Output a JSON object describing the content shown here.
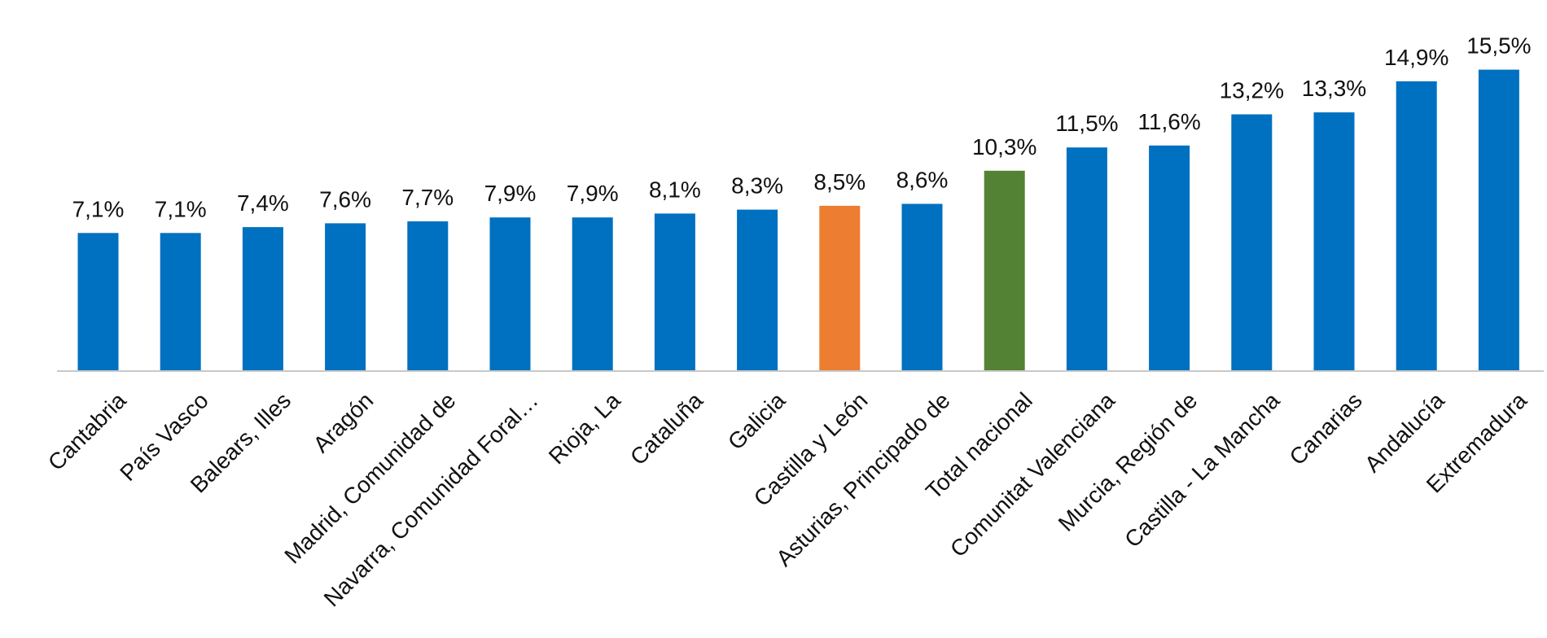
{
  "chart_data": {
    "type": "bar",
    "title": "",
    "xlabel": "",
    "ylabel": "",
    "ylim": [
      0,
      16
    ],
    "grid": false,
    "legend": "none",
    "categories": [
      "Cantabria",
      "País Vasco",
      "Balears, Illes",
      "Aragón",
      "Madrid, Comunidad de",
      "Navarra, Comunidad Foral…",
      "Rioja, La",
      "Cataluña",
      "Galicia",
      "Castilla y León",
      "Asturias, Principado de",
      "Total nacional",
      "Comunitat Valenciana",
      "Murcia, Región de",
      "Castilla - La Mancha",
      "Canarias",
      "Andalucía",
      "Extremadura"
    ],
    "values": [
      7.1,
      7.1,
      7.4,
      7.6,
      7.7,
      7.9,
      7.9,
      8.1,
      8.3,
      8.5,
      8.6,
      10.3,
      11.5,
      11.6,
      13.2,
      13.3,
      14.9,
      15.5
    ],
    "data_labels": [
      "7,1%",
      "7,1%",
      "7,4%",
      "7,6%",
      "7,7%",
      "7,9%",
      "7,9%",
      "8,1%",
      "8,3%",
      "8,5%",
      "8,6%",
      "10,3%",
      "11,5%",
      "11,6%",
      "13,2%",
      "13,3%",
      "14,9%",
      "15,5%"
    ],
    "colors": {
      "default": "#0070C0",
      "highlight": "#ED7D31",
      "total": "#548235",
      "axis": "#C8C8C8"
    },
    "highlight_category": "Castilla y León",
    "total_category": "Total nacional"
  }
}
